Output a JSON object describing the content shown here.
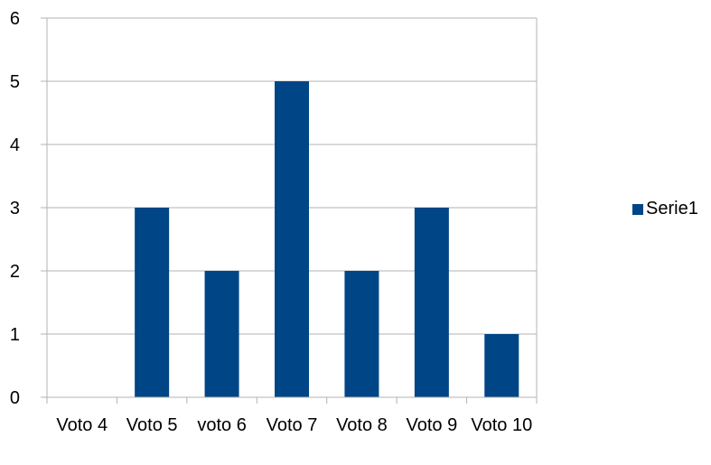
{
  "chart_data": {
    "type": "bar",
    "categories": [
      "Voto 4",
      "Voto 5",
      "voto 6",
      "Voto 7",
      "Voto 8",
      "Voto 9",
      "Voto 10"
    ],
    "series": [
      {
        "name": "Serie1",
        "values": [
          0,
          3,
          2,
          5,
          2,
          3,
          1
        ],
        "color": "#004586"
      }
    ],
    "ylim": [
      0,
      6
    ],
    "yticks": [
      0,
      1,
      2,
      3,
      4,
      5,
      6
    ],
    "grid": true,
    "legend": "right"
  }
}
